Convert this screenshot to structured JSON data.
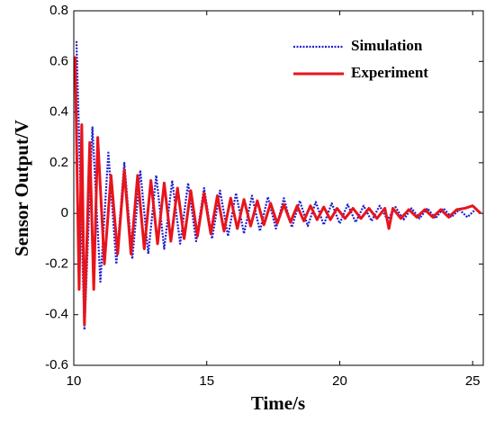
{
  "chart_data": {
    "type": "line",
    "xlabel": "Time/s",
    "ylabel": "Sensor Output/V",
    "xlim": [
      10,
      25.4
    ],
    "ylim": [
      -0.6,
      0.8
    ],
    "xticks": [
      10,
      15,
      20,
      25
    ],
    "yticks": [
      -0.6,
      -0.4,
      -0.2,
      0,
      0.2,
      0.4,
      0.6,
      0.8
    ],
    "legend": "upper right",
    "grid": false,
    "series": [
      {
        "name": "Simulation",
        "color": "#1f1fd0",
        "style": "dotted",
        "x": [
          10.1,
          10.4,
          10.7,
          11.0,
          11.3,
          11.6,
          11.9,
          12.2,
          12.5,
          12.8,
          13.1,
          13.4,
          13.7,
          14.0,
          14.3,
          14.6,
          14.9,
          15.2,
          15.5,
          15.8,
          16.1,
          16.4,
          16.7,
          17.0,
          17.3,
          17.6,
          17.9,
          18.2,
          18.5,
          18.8,
          19.1,
          19.4,
          19.7,
          20.0,
          20.3,
          20.6,
          20.9,
          21.2,
          21.5,
          21.8,
          22.1,
          22.4,
          22.7,
          23.0,
          23.3,
          23.6,
          23.9,
          24.2,
          24.5,
          24.8,
          25.1
        ],
        "values": [
          0.68,
          -0.46,
          0.34,
          -0.27,
          0.24,
          -0.2,
          0.2,
          -0.18,
          0.17,
          -0.16,
          0.15,
          -0.14,
          0.13,
          -0.12,
          0.12,
          -0.11,
          0.1,
          -0.1,
          0.09,
          -0.09,
          0.08,
          -0.08,
          0.07,
          -0.07,
          0.065,
          -0.06,
          0.06,
          -0.055,
          0.05,
          -0.05,
          0.045,
          -0.045,
          0.04,
          -0.04,
          0.035,
          -0.035,
          0.03,
          -0.03,
          0.03,
          -0.025,
          0.025,
          -0.025,
          0.02,
          -0.02,
          0.02,
          -0.02,
          0.02,
          -0.015,
          0.015,
          -0.015,
          0.015
        ]
      },
      {
        "name": "Experiment",
        "color": "#e8141c",
        "style": "solid",
        "x": [
          10.05,
          10.2,
          10.3,
          10.4,
          10.6,
          10.75,
          10.9,
          11.15,
          11.4,
          11.65,
          11.9,
          12.15,
          12.4,
          12.65,
          12.9,
          13.15,
          13.4,
          13.65,
          13.9,
          14.15,
          14.4,
          14.65,
          14.9,
          15.15,
          15.4,
          15.65,
          15.9,
          16.15,
          16.4,
          16.65,
          16.9,
          17.15,
          17.4,
          17.65,
          17.9,
          18.15,
          18.4,
          18.65,
          18.9,
          19.15,
          19.4,
          19.65,
          19.9,
          20.2,
          20.5,
          20.8,
          21.1,
          21.4,
          21.7,
          21.85,
          22.0,
          22.3,
          22.6,
          22.9,
          23.2,
          23.5,
          23.8,
          24.1,
          24.4,
          24.7,
          25.0,
          25.3
        ],
        "values": [
          0.62,
          -0.3,
          0.35,
          -0.44,
          0.28,
          -0.3,
          0.3,
          -0.2,
          0.15,
          -0.16,
          0.17,
          -0.16,
          0.15,
          -0.14,
          0.13,
          -0.12,
          0.12,
          -0.11,
          0.1,
          -0.1,
          0.09,
          -0.09,
          0.08,
          -0.08,
          0.07,
          -0.07,
          0.06,
          -0.06,
          0.055,
          -0.05,
          0.05,
          -0.045,
          0.04,
          -0.04,
          0.035,
          -0.035,
          0.03,
          -0.03,
          0.03,
          -0.025,
          0.025,
          -0.025,
          0.02,
          -0.02,
          0.02,
          -0.02,
          0.02,
          -0.02,
          0.02,
          -0.06,
          0.02,
          -0.02,
          0.015,
          -0.015,
          0.015,
          -0.015,
          0.015,
          -0.015,
          0.015,
          0.02,
          0.03,
          0.0
        ]
      }
    ]
  }
}
